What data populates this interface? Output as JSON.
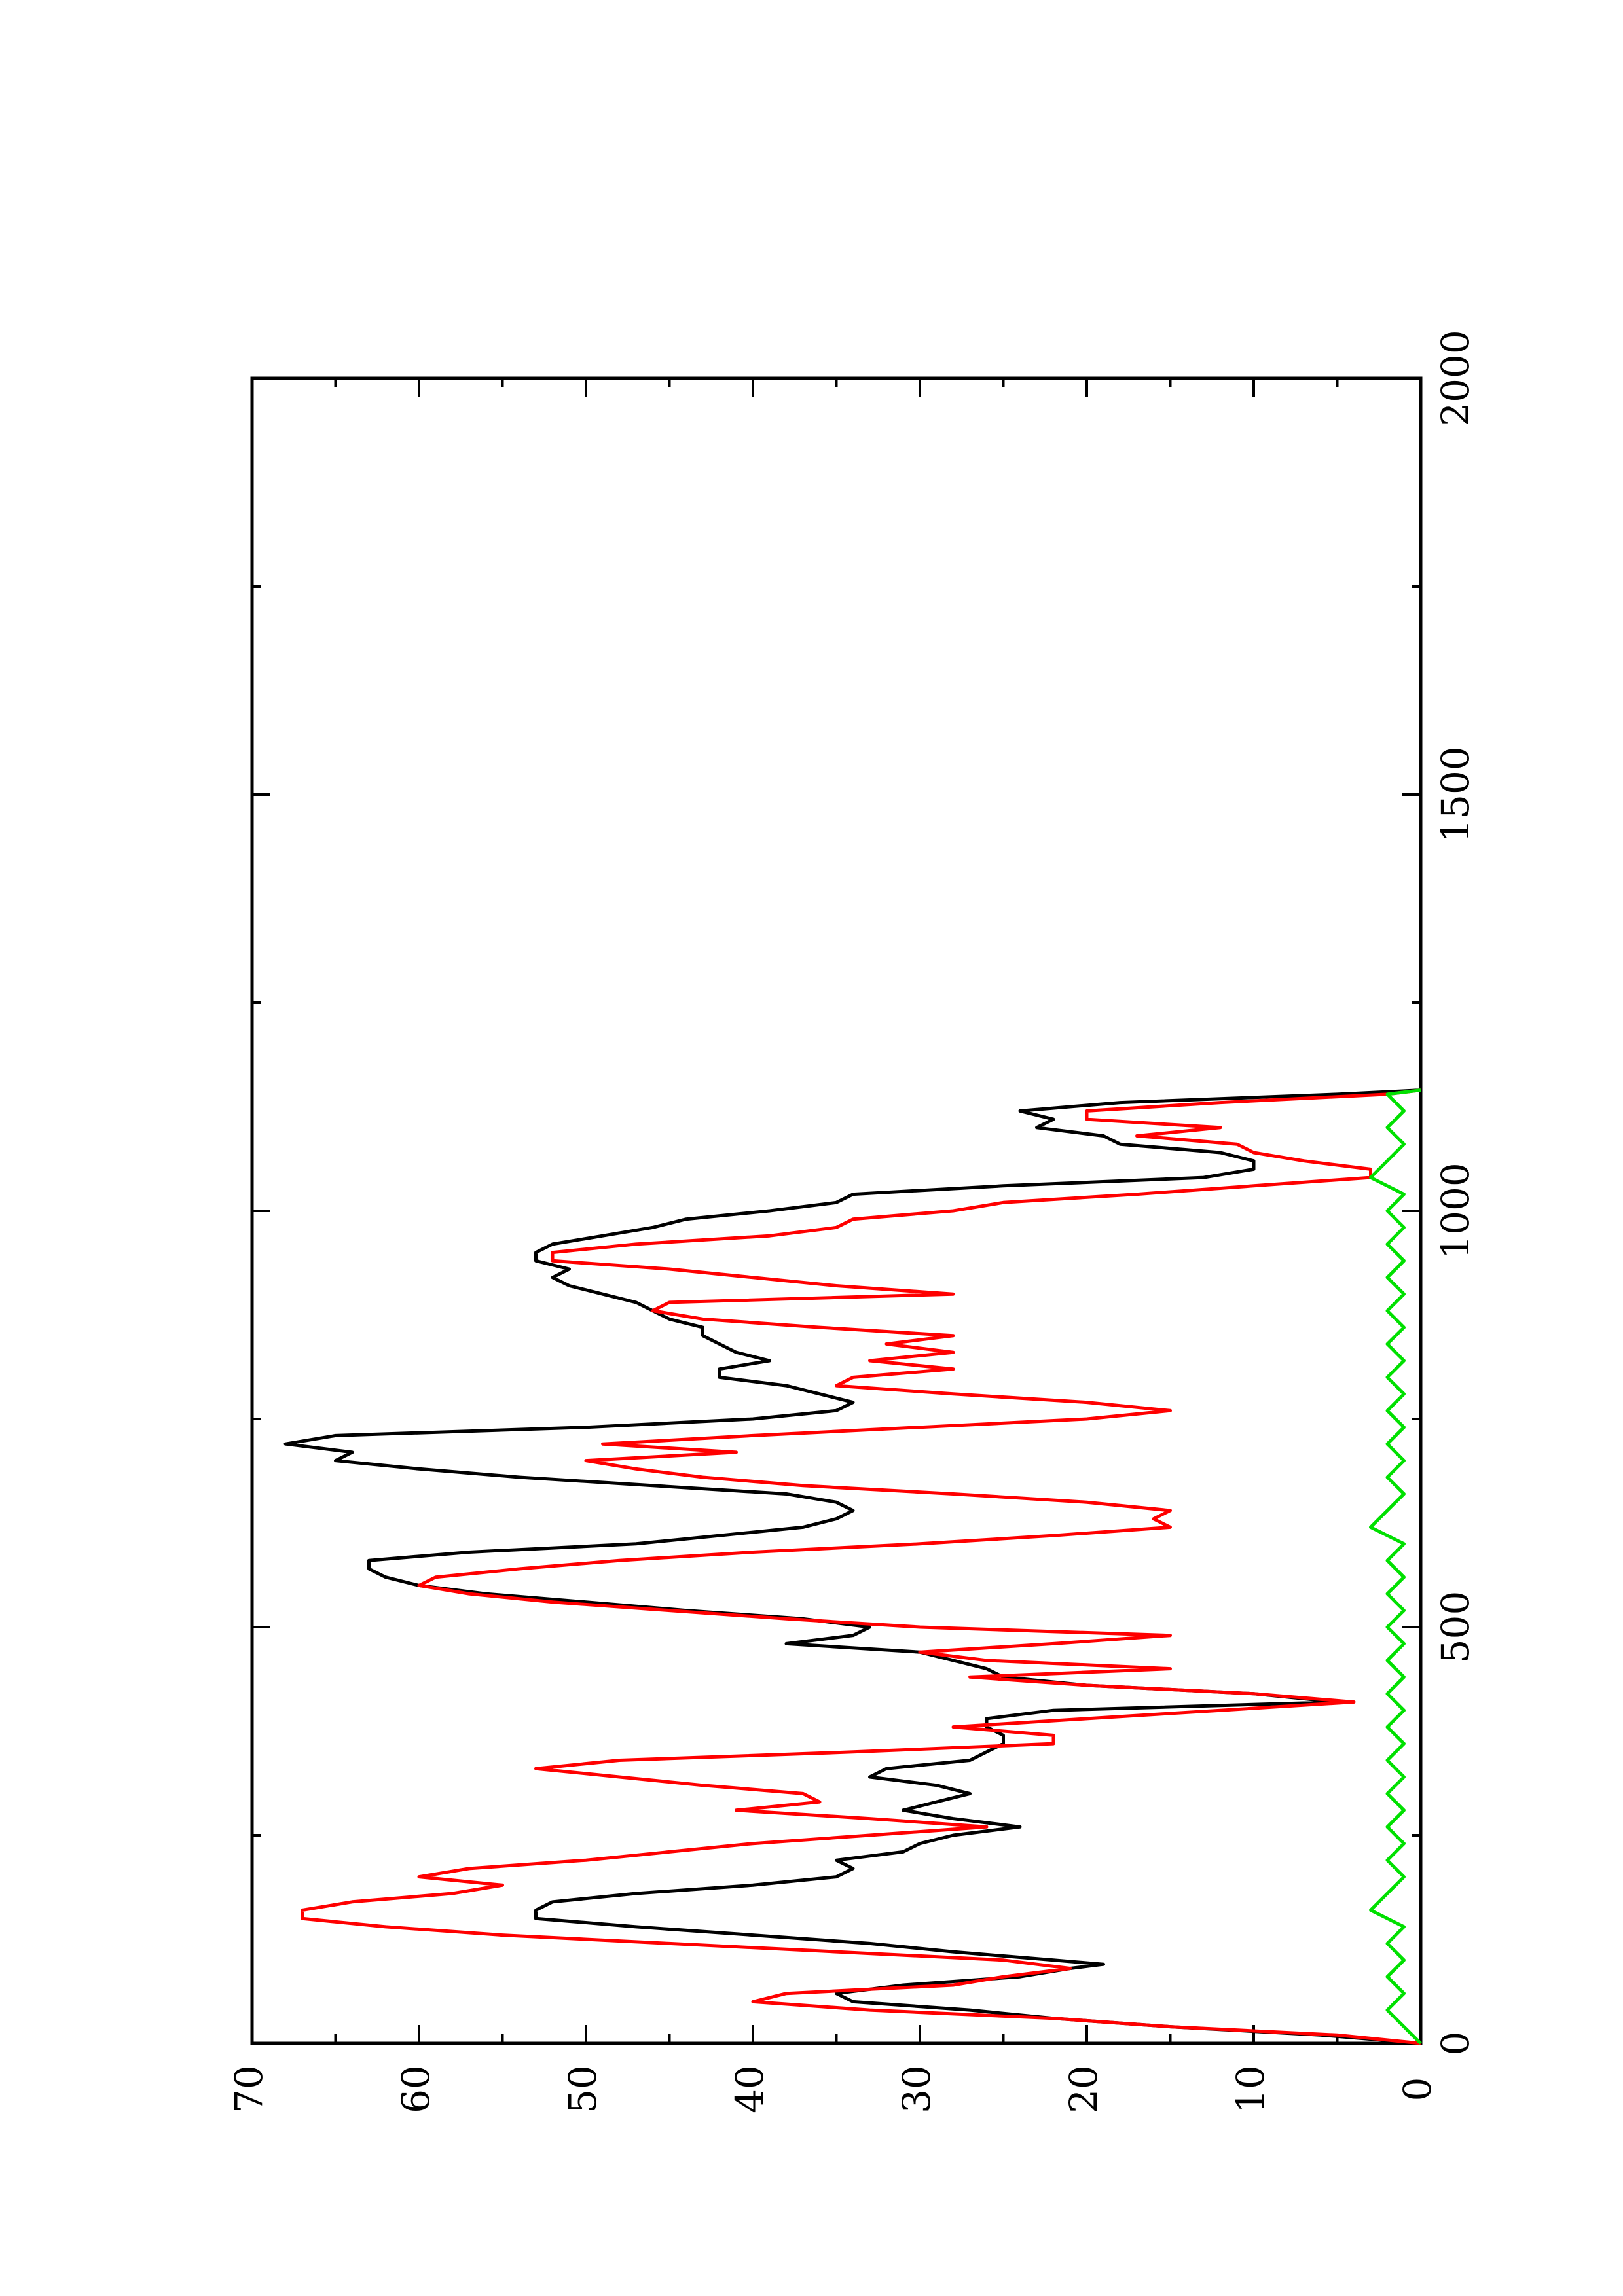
{
  "chart_data": {
    "type": "line",
    "orientation": "rotated-90-ccw",
    "title": "",
    "xlabel": "",
    "ylabel": "",
    "xlim": [
      0,
      2000
    ],
    "ylim": [
      0,
      70
    ],
    "x_ticks": [
      "0",
      "500",
      "1000",
      "1500",
      "2000"
    ],
    "y_ticks": [
      "0",
      "10",
      "20",
      "30",
      "40",
      "50",
      "60",
      "70"
    ],
    "grid": false,
    "legend": "none",
    "series": [
      {
        "color": "#000000",
        "points": [
          [
            0,
            0
          ],
          [
            10,
            6
          ],
          [
            20,
            15
          ],
          [
            30,
            22
          ],
          [
            40,
            27
          ],
          [
            50,
            34
          ],
          [
            60,
            35
          ],
          [
            70,
            31
          ],
          [
            80,
            24
          ],
          [
            90,
            21
          ],
          [
            95,
            19
          ],
          [
            100,
            22
          ],
          [
            110,
            28
          ],
          [
            120,
            33
          ],
          [
            130,
            40
          ],
          [
            140,
            47
          ],
          [
            150,
            53
          ],
          [
            160,
            53
          ],
          [
            170,
            52
          ],
          [
            180,
            47
          ],
          [
            190,
            40
          ],
          [
            200,
            35
          ],
          [
            210,
            34
          ],
          [
            220,
            35
          ],
          [
            230,
            31
          ],
          [
            240,
            30
          ],
          [
            250,
            28
          ],
          [
            260,
            24
          ],
          [
            270,
            28
          ],
          [
            280,
            31
          ],
          [
            290,
            29
          ],
          [
            300,
            27
          ],
          [
            310,
            29
          ],
          [
            320,
            33
          ],
          [
            330,
            32
          ],
          [
            340,
            27
          ],
          [
            350,
            26
          ],
          [
            360,
            25
          ],
          [
            370,
            25
          ],
          [
            380,
            26
          ],
          [
            390,
            26
          ],
          [
            400,
            22
          ],
          [
            410,
            5
          ],
          [
            420,
            10
          ],
          [
            430,
            20
          ],
          [
            440,
            25
          ],
          [
            450,
            26
          ],
          [
            460,
            28
          ],
          [
            470,
            30
          ],
          [
            480,
            38
          ],
          [
            490,
            34
          ],
          [
            500,
            33
          ],
          [
            510,
            37
          ],
          [
            520,
            44
          ],
          [
            530,
            50
          ],
          [
            540,
            56
          ],
          [
            550,
            60
          ],
          [
            560,
            62
          ],
          [
            570,
            63
          ],
          [
            580,
            63
          ],
          [
            590,
            57
          ],
          [
            600,
            47
          ],
          [
            610,
            42
          ],
          [
            620,
            37
          ],
          [
            630,
            35
          ],
          [
            640,
            34
          ],
          [
            650,
            35
          ],
          [
            660,
            38
          ],
          [
            670,
            46
          ],
          [
            680,
            54
          ],
          [
            690,
            60
          ],
          [
            700,
            65
          ],
          [
            710,
            64
          ],
          [
            720,
            68
          ],
          [
            730,
            65
          ],
          [
            740,
            50
          ],
          [
            750,
            40
          ],
          [
            760,
            35
          ],
          [
            770,
            34
          ],
          [
            780,
            36
          ],
          [
            790,
            38
          ],
          [
            800,
            42
          ],
          [
            810,
            42
          ],
          [
            820,
            39
          ],
          [
            830,
            41
          ],
          [
            840,
            42
          ],
          [
            850,
            43
          ],
          [
            860,
            43
          ],
          [
            870,
            45
          ],
          [
            880,
            46
          ],
          [
            890,
            47
          ],
          [
            900,
            49
          ],
          [
            910,
            51
          ],
          [
            920,
            52
          ],
          [
            930,
            51
          ],
          [
            940,
            53
          ],
          [
            950,
            53
          ],
          [
            960,
            52
          ],
          [
            970,
            49
          ],
          [
            980,
            46
          ],
          [
            990,
            44
          ],
          [
            1000,
            39
          ],
          [
            1010,
            35
          ],
          [
            1020,
            34
          ],
          [
            1030,
            25
          ],
          [
            1040,
            13
          ],
          [
            1050,
            10
          ],
          [
            1060,
            10
          ],
          [
            1070,
            12
          ],
          [
            1080,
            18
          ],
          [
            1090,
            19
          ],
          [
            1100,
            23
          ],
          [
            1110,
            22
          ],
          [
            1120,
            24
          ],
          [
            1130,
            18
          ],
          [
            1140,
            5
          ],
          [
            1145,
            0
          ]
        ]
      },
      {
        "color": "#ff0000",
        "points": [
          [
            0,
            0
          ],
          [
            10,
            5
          ],
          [
            20,
            15
          ],
          [
            30,
            22
          ],
          [
            40,
            33
          ],
          [
            50,
            40
          ],
          [
            60,
            38
          ],
          [
            70,
            28
          ],
          [
            80,
            25
          ],
          [
            90,
            21
          ],
          [
            100,
            25
          ],
          [
            110,
            35
          ],
          [
            120,
            45
          ],
          [
            130,
            55
          ],
          [
            140,
            62
          ],
          [
            150,
            67
          ],
          [
            160,
            67
          ],
          [
            170,
            64
          ],
          [
            180,
            58
          ],
          [
            190,
            55
          ],
          [
            200,
            60
          ],
          [
            210,
            57
          ],
          [
            220,
            50
          ],
          [
            230,
            45
          ],
          [
            240,
            40
          ],
          [
            250,
            33
          ],
          [
            260,
            26
          ],
          [
            270,
            33
          ],
          [
            280,
            41
          ],
          [
            290,
            36
          ],
          [
            300,
            37
          ],
          [
            310,
            43
          ],
          [
            320,
            48
          ],
          [
            330,
            53
          ],
          [
            340,
            48
          ],
          [
            350,
            34
          ],
          [
            360,
            22
          ],
          [
            370,
            22
          ],
          [
            380,
            28
          ],
          [
            390,
            20
          ],
          [
            400,
            12
          ],
          [
            410,
            4
          ],
          [
            420,
            10
          ],
          [
            430,
            20
          ],
          [
            440,
            27
          ],
          [
            450,
            15
          ],
          [
            460,
            26
          ],
          [
            470,
            30
          ],
          [
            480,
            22
          ],
          [
            490,
            15
          ],
          [
            500,
            30
          ],
          [
            510,
            38
          ],
          [
            520,
            45
          ],
          [
            530,
            52
          ],
          [
            540,
            57
          ],
          [
            550,
            60
          ],
          [
            560,
            59
          ],
          [
            570,
            54
          ],
          [
            580,
            48
          ],
          [
            590,
            40
          ],
          [
            600,
            30
          ],
          [
            610,
            22
          ],
          [
            620,
            15
          ],
          [
            630,
            16
          ],
          [
            640,
            15
          ],
          [
            650,
            20
          ],
          [
            660,
            28
          ],
          [
            670,
            37
          ],
          [
            680,
            43
          ],
          [
            690,
            47
          ],
          [
            700,
            50
          ],
          [
            710,
            41
          ],
          [
            720,
            49
          ],
          [
            730,
            40
          ],
          [
            740,
            30
          ],
          [
            750,
            20
          ],
          [
            760,
            15
          ],
          [
            770,
            20
          ],
          [
            780,
            28
          ],
          [
            790,
            35
          ],
          [
            800,
            34
          ],
          [
            810,
            28
          ],
          [
            820,
            33
          ],
          [
            830,
            28
          ],
          [
            840,
            32
          ],
          [
            850,
            28
          ],
          [
            860,
            36
          ],
          [
            870,
            43
          ],
          [
            880,
            46
          ],
          [
            890,
            45
          ],
          [
            900,
            28
          ],
          [
            910,
            35
          ],
          [
            920,
            40
          ],
          [
            930,
            45
          ],
          [
            940,
            52
          ],
          [
            950,
            52
          ],
          [
            960,
            47
          ],
          [
            970,
            39
          ],
          [
            980,
            35
          ],
          [
            990,
            34
          ],
          [
            1000,
            28
          ],
          [
            1010,
            25
          ],
          [
            1020,
            17
          ],
          [
            1030,
            10
          ],
          [
            1040,
            3
          ],
          [
            1050,
            3
          ],
          [
            1060,
            7
          ],
          [
            1070,
            10
          ],
          [
            1080,
            11
          ],
          [
            1090,
            17
          ],
          [
            1100,
            12
          ],
          [
            1110,
            20
          ],
          [
            1120,
            20
          ],
          [
            1130,
            12
          ],
          [
            1140,
            2
          ],
          [
            1145,
            0
          ]
        ]
      },
      {
        "color": "#00e000",
        "points": [
          [
            0,
            0
          ],
          [
            20,
            1
          ],
          [
            40,
            2
          ],
          [
            60,
            1
          ],
          [
            80,
            2
          ],
          [
            100,
            1
          ],
          [
            120,
            2
          ],
          [
            140,
            1
          ],
          [
            160,
            3
          ],
          [
            180,
            2
          ],
          [
            200,
            1
          ],
          [
            220,
            2
          ],
          [
            240,
            1
          ],
          [
            260,
            2
          ],
          [
            280,
            1
          ],
          [
            300,
            2
          ],
          [
            320,
            1
          ],
          [
            340,
            2
          ],
          [
            360,
            1
          ],
          [
            380,
            2
          ],
          [
            400,
            1
          ],
          [
            420,
            2
          ],
          [
            440,
            1
          ],
          [
            460,
            2
          ],
          [
            480,
            1
          ],
          [
            500,
            2
          ],
          [
            520,
            1
          ],
          [
            540,
            2
          ],
          [
            560,
            1
          ],
          [
            580,
            2
          ],
          [
            600,
            1
          ],
          [
            620,
            3
          ],
          [
            640,
            2
          ],
          [
            660,
            1
          ],
          [
            680,
            2
          ],
          [
            700,
            1
          ],
          [
            720,
            2
          ],
          [
            740,
            1
          ],
          [
            760,
            2
          ],
          [
            780,
            1
          ],
          [
            800,
            2
          ],
          [
            820,
            1
          ],
          [
            840,
            2
          ],
          [
            860,
            1
          ],
          [
            880,
            2
          ],
          [
            900,
            1
          ],
          [
            920,
            2
          ],
          [
            940,
            1
          ],
          [
            960,
            2
          ],
          [
            980,
            1
          ],
          [
            1000,
            2
          ],
          [
            1020,
            1
          ],
          [
            1040,
            3
          ],
          [
            1060,
            2
          ],
          [
            1080,
            1
          ],
          [
            1100,
            2
          ],
          [
            1120,
            1
          ],
          [
            1140,
            2
          ],
          [
            1145,
            0
          ]
        ]
      }
    ]
  }
}
